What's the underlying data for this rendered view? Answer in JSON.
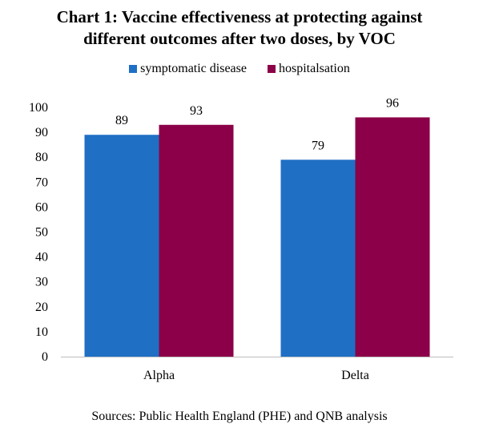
{
  "title_line1": "Chart 1: Vaccine effectiveness at protecting against",
  "title_line2": "different outcomes after two doses, by VOC",
  "source": "Sources: Public Health England (PHE) and QNB analysis",
  "chart_data": {
    "type": "bar",
    "title": "Chart 1: Vaccine effectiveness at protecting against different outcomes after two doses, by VOC",
    "categories": [
      "Alpha",
      "Delta"
    ],
    "series": [
      {
        "name": "symptomatic disease",
        "values": [
          89,
          79
        ],
        "color": "#1f6fc5"
      },
      {
        "name": "hospitalsation",
        "values": [
          93,
          96
        ],
        "color": "#8b0048"
      }
    ],
    "ylim": [
      0,
      100
    ],
    "yticks": [
      0,
      10,
      20,
      30,
      40,
      50,
      60,
      70,
      80,
      90,
      100
    ],
    "grid": false,
    "legend_position": "top-center",
    "data_labels": true
  }
}
